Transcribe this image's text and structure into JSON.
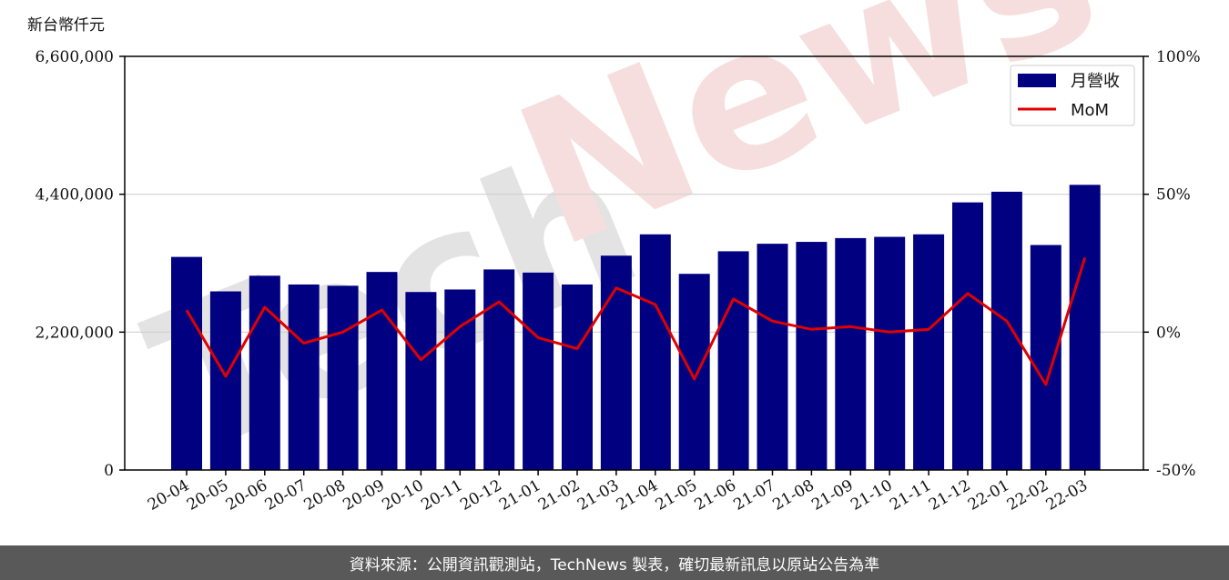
{
  "watermark": {
    "text_gray": "Tech",
    "text_pink": "News",
    "color_gray": "#e3e3e3",
    "color_pink": "#f7dede"
  },
  "footer": {
    "text": "資料來源：公開資訊觀測站，TechNews 製表，確切最新訊息以原站公告為準"
  },
  "chart_data": {
    "type": "bar",
    "unit_label": "新台幣仟元",
    "categories": [
      "20-04",
      "20-05",
      "20-06",
      "20-07",
      "20-08",
      "20-09",
      "20-10",
      "20-11",
      "20-12",
      "21-01",
      "21-02",
      "21-03",
      "21-04",
      "21-05",
      "21-06",
      "21-07",
      "21-08",
      "21-09",
      "21-10",
      "21-11",
      "21-12",
      "22-01",
      "22-02",
      "22-03"
    ],
    "series": [
      {
        "name": "月營收",
        "type": "bar",
        "axis": "left",
        "color": "#000080",
        "values": [
          3400000,
          2850000,
          3100000,
          2960000,
          2940000,
          3160000,
          2840000,
          2880000,
          3200000,
          3150000,
          2960000,
          3420000,
          3760000,
          3130000,
          3490000,
          3610000,
          3640000,
          3700000,
          3720000,
          3760000,
          4270000,
          4440000,
          3590000,
          4550000
        ]
      },
      {
        "name": "MoM",
        "type": "line",
        "axis": "right",
        "color": "#e00000",
        "values": [
          8,
          -16,
          9,
          -4,
          0,
          8,
          -10,
          2,
          11,
          -2,
          -6,
          16,
          10,
          -17,
          12,
          4,
          1,
          2,
          0,
          1,
          14,
          4,
          -19,
          27
        ]
      }
    ],
    "y_left": {
      "min": 0,
      "max": 6600000,
      "ticks": [
        0,
        2200000,
        4400000,
        6600000
      ],
      "tick_labels": [
        "0",
        "2,200,000",
        "4,400,000",
        "6,600,000"
      ]
    },
    "y_right": {
      "min": -50,
      "max": 100,
      "ticks": [
        -50,
        0,
        50,
        100
      ],
      "tick_labels": [
        "-50%",
        "0%",
        "50%",
        "100%"
      ]
    },
    "grid": "horizontal",
    "legend": {
      "placement": "top-right",
      "entries": [
        "月營收",
        "MoM"
      ]
    }
  }
}
